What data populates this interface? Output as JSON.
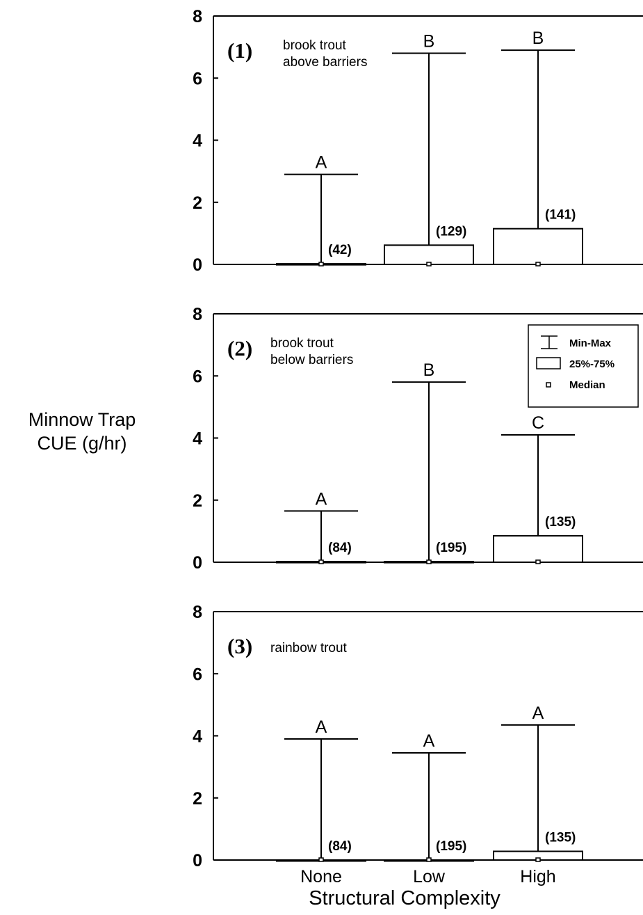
{
  "y_axis_label": [
    "Minnow Trap",
    "CUE (g/hr)"
  ],
  "x_axis_label": "Structural Complexity",
  "legend": {
    "min_max": "Min-Max",
    "iqr": "25%-75%",
    "median": "Median"
  },
  "chart_data": [
    {
      "type": "box",
      "panel_id": "(1)",
      "subtitle": [
        "brook trout",
        "above barriers"
      ],
      "categories": [
        "None",
        "Low",
        "High"
      ],
      "ylim": [
        0,
        8
      ],
      "yticks": [
        0,
        2,
        4,
        6,
        8
      ],
      "grid": false,
      "boxes": [
        {
          "category": "None",
          "min": 0,
          "q1": 0,
          "median": 0,
          "q3": 0.02,
          "max": 2.9,
          "n": "(42)",
          "group": "A"
        },
        {
          "category": "Low",
          "min": 0,
          "q1": 0,
          "median": 0,
          "q3": 0.62,
          "max": 6.8,
          "n": "(129)",
          "group": "B"
        },
        {
          "category": "High",
          "min": 0,
          "q1": 0,
          "median": 0,
          "q3": 1.15,
          "max": 6.9,
          "n": "(141)",
          "group": "B"
        }
      ]
    },
    {
      "type": "box",
      "panel_id": "(2)",
      "subtitle": [
        "brook trout",
        "below barriers"
      ],
      "categories": [
        "None",
        "Low",
        "High"
      ],
      "ylim": [
        0,
        8
      ],
      "yticks": [
        0,
        2,
        4,
        6,
        8
      ],
      "grid": false,
      "legend_position": "top-right",
      "boxes": [
        {
          "category": "None",
          "min": 0,
          "q1": 0,
          "median": 0,
          "q3": 0.02,
          "max": 1.65,
          "n": "(84)",
          "group": "A"
        },
        {
          "category": "Low",
          "min": 0,
          "q1": 0,
          "median": 0,
          "q3": 0.02,
          "max": 5.8,
          "n": "(195)",
          "group": "B"
        },
        {
          "category": "High",
          "min": 0,
          "q1": 0,
          "median": 0,
          "q3": 0.85,
          "max": 4.1,
          "n": "(135)",
          "group": "C"
        }
      ]
    },
    {
      "type": "box",
      "panel_id": "(3)",
      "subtitle": [
        "rainbow trout"
      ],
      "categories": [
        "None",
        "Low",
        "High"
      ],
      "ylim": [
        0,
        8
      ],
      "yticks": [
        0,
        2,
        4,
        6,
        8
      ],
      "grid": false,
      "boxes": [
        {
          "category": "None",
          "min": 0,
          "q1": 0,
          "median": 0,
          "q3": 0.0,
          "max": 3.9,
          "n": "(84)",
          "group": "A"
        },
        {
          "category": "Low",
          "min": 0,
          "q1": 0,
          "median": 0,
          "q3": 0.0,
          "max": 3.45,
          "n": "(195)",
          "group": "A"
        },
        {
          "category": "High",
          "min": 0,
          "q1": 0,
          "median": 0,
          "q3": 0.28,
          "max": 4.35,
          "n": "(135)",
          "group": "A"
        }
      ]
    }
  ]
}
